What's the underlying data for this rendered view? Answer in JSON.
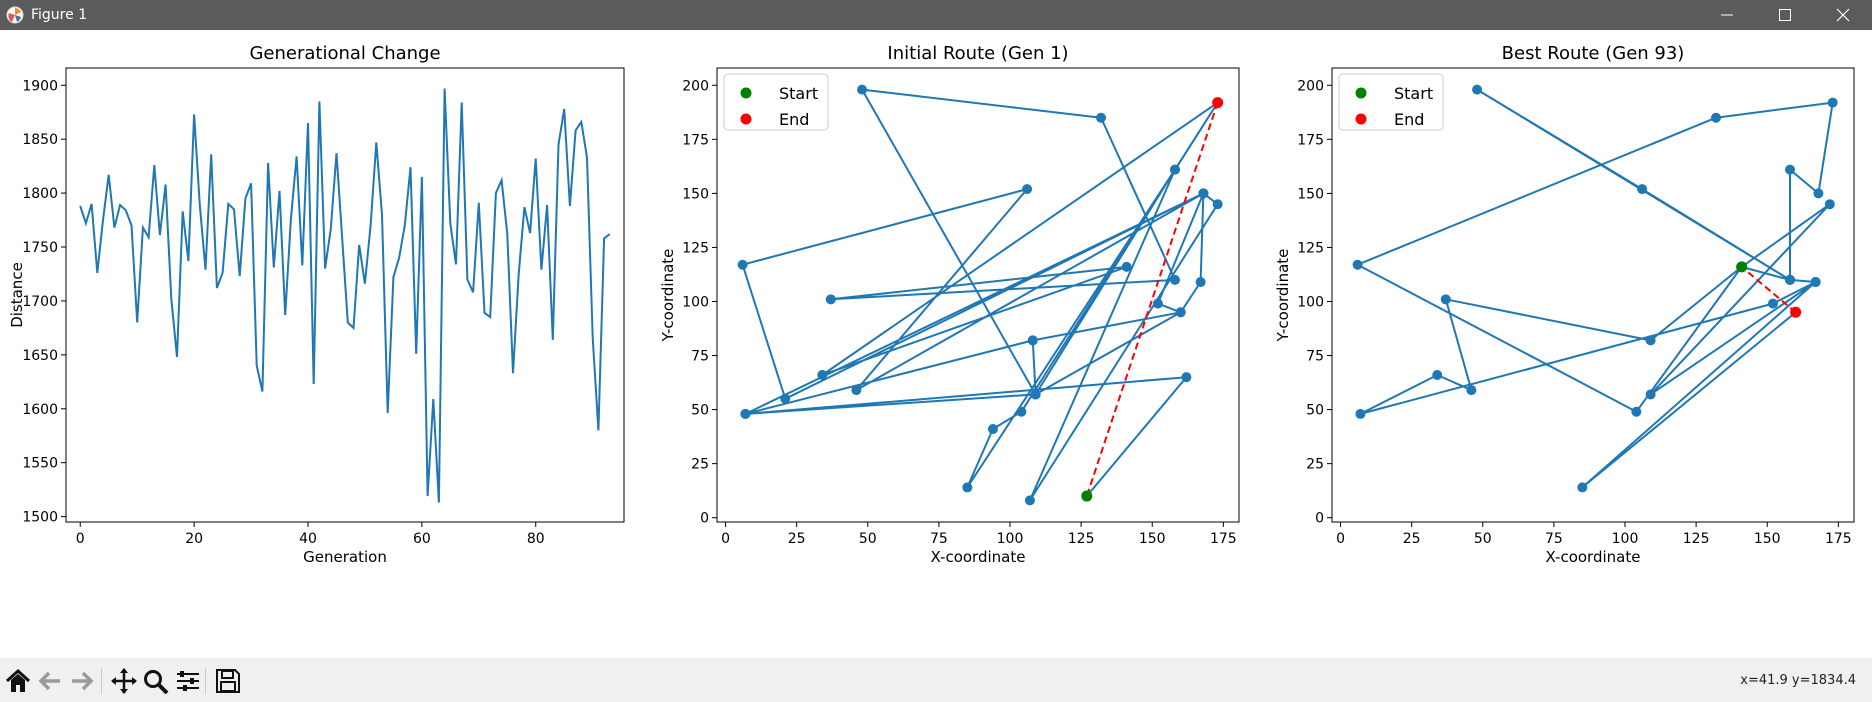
{
  "window": {
    "title": "Figure 1"
  },
  "toolbar": {
    "buttons": [
      "home-icon",
      "back-arrow-icon",
      "forward-arrow-icon",
      "pan-icon",
      "zoom-icon",
      "configure-icon",
      "save-icon"
    ],
    "coords": "x=41.9 y=1834.4"
  },
  "colors": {
    "line": "#1f77b4",
    "start": "#008000",
    "end": "#ff0000"
  },
  "chart_data": [
    {
      "type": "line",
      "title": "Generational Change",
      "xlabel": "Generation",
      "ylabel": "Distance",
      "xlim": [
        -2.5,
        95.5
      ],
      "ylim": [
        1495,
        1916
      ],
      "xticks": [
        0,
        20,
        40,
        60,
        80
      ],
      "yticks": [
        1500,
        1550,
        1600,
        1650,
        1700,
        1750,
        1800,
        1850,
        1900
      ],
      "x_start": 0,
      "values": [
        1788,
        1772,
        1790,
        1726,
        1775,
        1817,
        1768,
        1789,
        1784,
        1770,
        1680,
        1768,
        1759,
        1826,
        1761,
        1808,
        1702,
        1648,
        1783,
        1737,
        1873,
        1789,
        1729,
        1836,
        1712,
        1726,
        1790,
        1785,
        1723,
        1795,
        1809,
        1640,
        1616,
        1828,
        1731,
        1802,
        1687,
        1776,
        1834,
        1733,
        1865,
        1623,
        1885,
        1730,
        1767,
        1837,
        1758,
        1680,
        1675,
        1752,
        1716,
        1770,
        1847,
        1780,
        1596,
        1722,
        1740,
        1770,
        1824,
        1651,
        1815,
        1519,
        1609,
        1513,
        1897,
        1772,
        1734,
        1884,
        1720,
        1708,
        1791,
        1689,
        1685,
        1800,
        1812,
        1762,
        1633,
        1725,
        1787,
        1763,
        1832,
        1729,
        1789,
        1664,
        1845,
        1878,
        1788,
        1858,
        1866,
        1833,
        1666,
        1580,
        1758,
        1762
      ]
    },
    {
      "type": "scatter",
      "title": "Initial Route (Gen 1)",
      "xlabel": "X-coordinate",
      "ylabel": "Y-coordinate",
      "xlim": [
        -3,
        180.5
      ],
      "ylim": [
        -2,
        208
      ],
      "xticks": [
        0,
        25,
        50,
        75,
        100,
        125,
        150,
        175
      ],
      "yticks": [
        0,
        25,
        50,
        75,
        100,
        125,
        150,
        175,
        200
      ],
      "legend": {
        "location": "upper-left",
        "entries": [
          "Start",
          "End"
        ]
      },
      "route": [
        [
          127,
          10
        ],
        [
          162,
          65
        ],
        [
          7,
          48
        ],
        [
          109,
          57
        ],
        [
          48,
          198
        ],
        [
          132,
          185
        ],
        [
          158,
          110
        ],
        [
          37,
          101
        ],
        [
          141,
          116
        ],
        [
          34,
          66
        ],
        [
          173,
          192
        ],
        [
          104,
          49
        ],
        [
          94,
          41
        ],
        [
          85,
          14
        ],
        [
          158,
          161
        ],
        [
          107,
          8
        ],
        [
          173,
          145
        ],
        [
          168,
          150
        ],
        [
          21,
          55
        ],
        [
          6,
          117
        ],
        [
          106,
          152
        ],
        [
          46,
          59
        ],
        [
          168,
          150
        ],
        [
          167,
          109
        ],
        [
          160,
          95
        ],
        [
          108,
          82
        ],
        [
          109,
          57
        ],
        [
          160,
          95
        ],
        [
          152,
          99
        ],
        [
          168,
          150
        ],
        [
          7,
          48
        ],
        [
          108,
          82
        ],
        [
          109,
          57
        ],
        [
          158,
          161
        ],
        [
          173,
          192
        ]
      ],
      "start": [
        127,
        10
      ],
      "end": [
        173,
        192
      ]
    },
    {
      "type": "scatter",
      "title": "Best Route (Gen 93)",
      "xlabel": "X-coordinate",
      "ylabel": "Y-coordinate",
      "xlim": [
        -3,
        180.5
      ],
      "ylim": [
        -2,
        208
      ],
      "xticks": [
        0,
        25,
        50,
        75,
        100,
        125,
        150,
        175
      ],
      "yticks": [
        0,
        25,
        50,
        75,
        100,
        125,
        150,
        175,
        200
      ],
      "legend": {
        "location": "upper-left",
        "entries": [
          "Start",
          "End"
        ]
      },
      "route": [
        [
          141,
          116
        ],
        [
          172,
          145
        ],
        [
          109,
          57
        ],
        [
          167,
          109
        ],
        [
          158,
          110
        ],
        [
          48,
          198
        ],
        [
          106,
          152
        ],
        [
          158,
          110
        ],
        [
          141,
          116
        ],
        [
          104,
          49
        ],
        [
          6,
          117
        ],
        [
          132,
          185
        ],
        [
          173,
          192
        ],
        [
          168,
          150
        ],
        [
          158,
          161
        ],
        [
          158,
          110
        ],
        [
          141,
          116
        ],
        [
          109,
          82
        ],
        [
          37,
          101
        ],
        [
          46,
          59
        ],
        [
          34,
          66
        ],
        [
          7,
          48
        ],
        [
          152,
          99
        ],
        [
          167,
          109
        ],
        [
          85,
          14
        ],
        [
          160,
          95
        ]
      ],
      "start": [
        141,
        116
      ],
      "end": [
        160,
        95
      ]
    }
  ]
}
